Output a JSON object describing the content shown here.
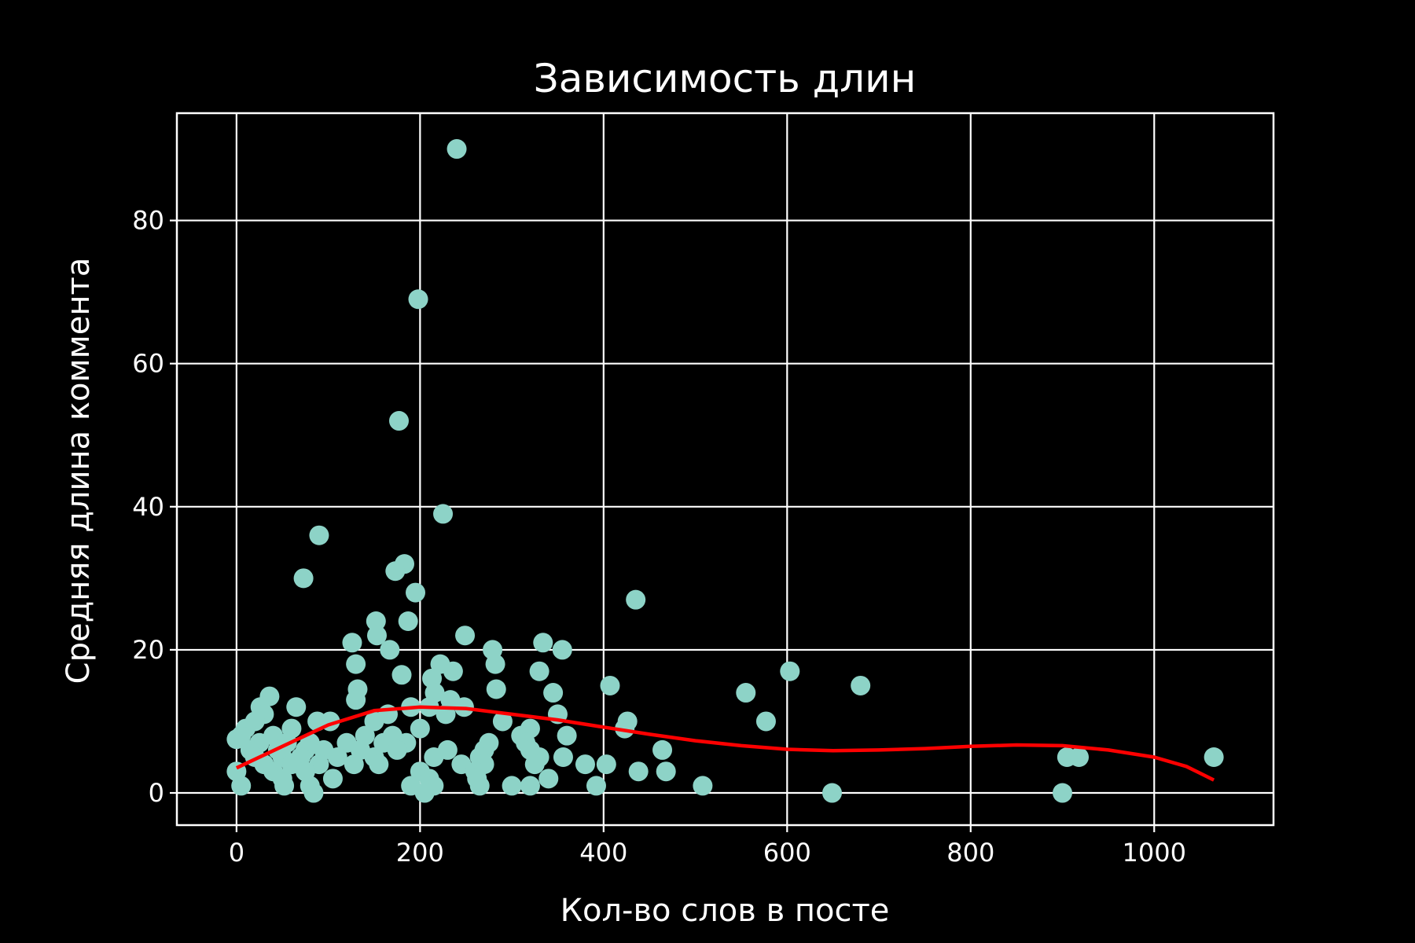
{
  "chart_data": {
    "type": "scatter",
    "title": "Зависимость длин",
    "xlabel": "Кол-во слов в посте",
    "ylabel": "Средняя длина коммента",
    "xlim": [
      -65,
      1130
    ],
    "ylim": [
      -4.5,
      95
    ],
    "xticks": [
      0,
      200,
      400,
      600,
      800,
      1000
    ],
    "yticks": [
      0,
      20,
      40,
      60,
      80
    ],
    "grid": true,
    "colors": {
      "background": "#000000",
      "points": "#8dd3c7",
      "fit_line": "#ff0000",
      "axes": "#ffffff"
    },
    "series": [
      {
        "type": "scatter",
        "points": [
          [
            240,
            90
          ],
          [
            198,
            69
          ],
          [
            177,
            52
          ],
          [
            225,
            39
          ],
          [
            90,
            36
          ],
          [
            73,
            30
          ],
          [
            183,
            32
          ],
          [
            173,
            31
          ],
          [
            195,
            28
          ],
          [
            435,
            27
          ],
          [
            152,
            24
          ],
          [
            187,
            24
          ],
          [
            249,
            22
          ],
          [
            153,
            22
          ],
          [
            126,
            21
          ],
          [
            334,
            21
          ],
          [
            167,
            20
          ],
          [
            279,
            20
          ],
          [
            355,
            20
          ],
          [
            130,
            18
          ],
          [
            222,
            18
          ],
          [
            282,
            18
          ],
          [
            236,
            17
          ],
          [
            330,
            17
          ],
          [
            603,
            17
          ],
          [
            180,
            16.5
          ],
          [
            213,
            16
          ],
          [
            407,
            15
          ],
          [
            680,
            15
          ],
          [
            132,
            14.5
          ],
          [
            283,
            14.5
          ],
          [
            555,
            14
          ],
          [
            345,
            14
          ],
          [
            216,
            14
          ],
          [
            36,
            13.5
          ],
          [
            130,
            13
          ],
          [
            233,
            13
          ],
          [
            577,
            10
          ],
          [
            65,
            12
          ],
          [
            26,
            12
          ],
          [
            190,
            12
          ],
          [
            248,
            12
          ],
          [
            210,
            12
          ],
          [
            30,
            11
          ],
          [
            165,
            11
          ],
          [
            228,
            11
          ],
          [
            350,
            11
          ],
          [
            102,
            10
          ],
          [
            88,
            10
          ],
          [
            20,
            10
          ],
          [
            150,
            10
          ],
          [
            290,
            10
          ],
          [
            320,
            9
          ],
          [
            426,
            10
          ],
          [
            423,
            9
          ],
          [
            200,
            9
          ],
          [
            60,
            9
          ],
          [
            10,
            9
          ],
          [
            40,
            8
          ],
          [
            140,
            8
          ],
          [
            170,
            8
          ],
          [
            360,
            8
          ],
          [
            310,
            8
          ],
          [
            5,
            8
          ],
          [
            0,
            7.5
          ],
          [
            25,
            7
          ],
          [
            55,
            7
          ],
          [
            80,
            7
          ],
          [
            120,
            7
          ],
          [
            160,
            7
          ],
          [
            185,
            7
          ],
          [
            275,
            7
          ],
          [
            315,
            7
          ],
          [
            15,
            6
          ],
          [
            45,
            6
          ],
          [
            75,
            6
          ],
          [
            95,
            6
          ],
          [
            135,
            6
          ],
          [
            175,
            6
          ],
          [
            230,
            6
          ],
          [
            270,
            6
          ],
          [
            320,
            6
          ],
          [
            464,
            6
          ],
          [
            20,
            5
          ],
          [
            50,
            5
          ],
          [
            70,
            5
          ],
          [
            110,
            5
          ],
          [
            150,
            5
          ],
          [
            215,
            5
          ],
          [
            265,
            5
          ],
          [
            330,
            5
          ],
          [
            356,
            5
          ],
          [
            905,
            5
          ],
          [
            918,
            5
          ],
          [
            1065,
            5
          ],
          [
            30,
            4
          ],
          [
            60,
            4
          ],
          [
            90,
            4
          ],
          [
            128,
            4
          ],
          [
            155,
            4
          ],
          [
            245,
            4
          ],
          [
            270,
            4
          ],
          [
            325,
            4
          ],
          [
            380,
            4
          ],
          [
            403,
            4
          ],
          [
            0,
            3
          ],
          [
            40,
            3
          ],
          [
            75,
            3
          ],
          [
            200,
            3
          ],
          [
            260,
            3
          ],
          [
            438,
            3
          ],
          [
            468,
            3
          ],
          [
            50,
            2
          ],
          [
            105,
            2
          ],
          [
            210,
            2
          ],
          [
            262,
            2
          ],
          [
            340,
            2
          ],
          [
            5,
            1
          ],
          [
            52,
            1
          ],
          [
            80,
            1
          ],
          [
            190,
            1
          ],
          [
            215,
            1
          ],
          [
            265,
            1
          ],
          [
            300,
            1
          ],
          [
            320,
            1
          ],
          [
            392,
            1
          ],
          [
            508,
            1
          ],
          [
            84,
            0
          ],
          [
            205,
            0
          ],
          [
            649,
            0
          ],
          [
            900,
            0
          ]
        ]
      },
      {
        "type": "line",
        "points": [
          [
            0,
            3.5
          ],
          [
            50,
            6.5
          ],
          [
            100,
            9.5
          ],
          [
            150,
            11.5
          ],
          [
            200,
            12
          ],
          [
            250,
            11.8
          ],
          [
            300,
            11
          ],
          [
            350,
            10.2
          ],
          [
            400,
            9.2
          ],
          [
            450,
            8.2
          ],
          [
            500,
            7.3
          ],
          [
            550,
            6.6
          ],
          [
            600,
            6.1
          ],
          [
            650,
            5.9
          ],
          [
            700,
            6
          ],
          [
            750,
            6.2
          ],
          [
            800,
            6.5
          ],
          [
            850,
            6.7
          ],
          [
            900,
            6.6
          ],
          [
            950,
            6
          ],
          [
            1000,
            5
          ],
          [
            1035,
            3.7
          ],
          [
            1065,
            1.8
          ]
        ]
      }
    ]
  }
}
